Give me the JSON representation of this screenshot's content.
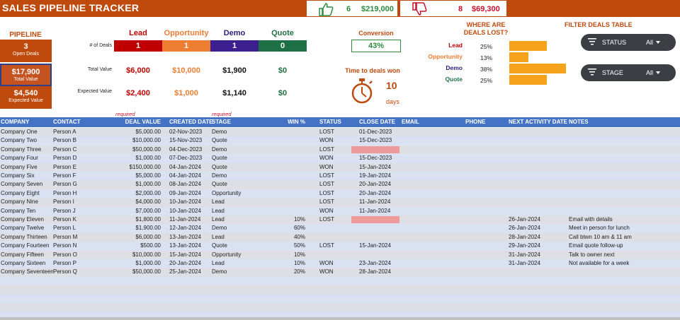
{
  "header": {
    "title": "SALES PIPELINE TRACKER",
    "won_count": "6",
    "won_amount": "$219,000",
    "lost_count": "8",
    "lost_amount": "$69,300"
  },
  "pipeline": {
    "label": "PIPELINE",
    "kpis": [
      {
        "value": "3",
        "label": "Open Deals"
      },
      {
        "value": "$17,900",
        "label": "Total Value"
      },
      {
        "value": "$4,540",
        "label": "Expected Value"
      }
    ],
    "row_labels": [
      "# of Deals",
      "Total Value",
      "Expected Value"
    ]
  },
  "stages": [
    {
      "name": "Lead",
      "deals": "1",
      "total": "$6,000",
      "expected": "$2,400",
      "color": "#c00000"
    },
    {
      "name": "Opportunity",
      "deals": "1",
      "total": "$10,000",
      "expected": "$1,000",
      "color": "#ed7d31"
    },
    {
      "name": "Demo",
      "deals": "1",
      "total": "$1,900",
      "expected": "$1,140",
      "color": "#3b1f8f"
    },
    {
      "name": "Quote",
      "deals": "0",
      "total": "$0",
      "expected": "$0",
      "color": "#1e7145"
    }
  ],
  "conversion": {
    "label": "Conversion",
    "value": "43%"
  },
  "time_to_won": {
    "label": "Time to deals won",
    "value": "10",
    "unit": "days"
  },
  "where_lost": {
    "title_line1": "WHERE ARE",
    "title_line2": "DEALS LOST?",
    "items": [
      {
        "stage": "Lead",
        "pct": "25%",
        "fraction": 0.25,
        "color": "#c00000"
      },
      {
        "stage": "Opportunity",
        "pct": "13%",
        "fraction": 0.13,
        "color": "#ed7d31"
      },
      {
        "stage": "Demo",
        "pct": "38%",
        "fraction": 0.38,
        "color": "#2d1e7a"
      },
      {
        "stage": "Quote",
        "pct": "25%",
        "fraction": 0.25,
        "color": "#1e7145"
      }
    ]
  },
  "filters": {
    "title": "FILTER DEALS TABLE",
    "items": [
      {
        "label": "STATUS",
        "value": "All"
      },
      {
        "label": "STAGE",
        "value": "All"
      }
    ]
  },
  "table": {
    "required_label": "required",
    "columns": [
      "COMPANY",
      "CONTACT",
      "DEAL VALUE",
      "CREATED DATE",
      "STAGE",
      "WIN %",
      "STATUS",
      "CLOSE DATE",
      "EMAIL",
      "PHONE",
      "NEXT ACTIVITY DATE",
      "NOTES"
    ],
    "rows": [
      [
        "Company One",
        "Person A",
        "$5,000.00",
        "02-Nov-2023",
        "Demo",
        "",
        "LOST",
        "01-Dec-2023",
        "",
        "",
        "",
        ""
      ],
      [
        "Company Two",
        "Person B",
        "$10,000.00",
        "15-Nov-2023",
        "Quote",
        "",
        "WON",
        "15-Dec-2023",
        "",
        "",
        "",
        ""
      ],
      [
        "Company Three",
        "Person C",
        "$50,000.00",
        "04-Dec-2023",
        "Demo",
        "",
        "LOST",
        "",
        "",
        "",
        "",
        ""
      ],
      [
        "Company Four",
        "Person D",
        "$1,000.00",
        "07-Dec-2023",
        "Quote",
        "",
        "WON",
        "15-Dec-2023",
        "",
        "",
        "",
        ""
      ],
      [
        "Company Five",
        "Person E",
        "$150,000.00",
        "04-Jan-2024",
        "Quote",
        "",
        "WON",
        "15-Jan-2024",
        "",
        "",
        "",
        ""
      ],
      [
        "Company Six",
        "Person F",
        "$5,000.00",
        "04-Jan-2024",
        "Demo",
        "",
        "LOST",
        "19-Jan-2024",
        "",
        "",
        "",
        ""
      ],
      [
        "Company Seven",
        "Person G",
        "$1,000.00",
        "08-Jan-2024",
        "Quote",
        "",
        "LOST",
        "20-Jan-2024",
        "",
        "",
        "",
        ""
      ],
      [
        "Company Eight",
        "Person H",
        "$2,000.00",
        "09-Jan-2024",
        "Opportunity",
        "",
        "LOST",
        "20-Jan-2024",
        "",
        "",
        "",
        ""
      ],
      [
        "Company Nine",
        "Person I",
        "$4,000.00",
        "10-Jan-2024",
        "Lead",
        "",
        "LOST",
        "11-Jan-2024",
        "",
        "",
        "",
        ""
      ],
      [
        "Company Ten",
        "Person J",
        "$7,000.00",
        "10-Jan-2024",
        "Lead",
        "",
        "WON",
        "11-Jan-2024",
        "",
        "",
        "",
        ""
      ],
      [
        "Company Eleven",
        "Person K",
        "$1,800.00",
        "11-Jan-2024",
        "Lead",
        "10%",
        "LOST",
        "",
        "",
        "",
        "26-Jan-2024",
        "Email with details"
      ],
      [
        "Company Twelve",
        "Person L",
        "$1,900.00",
        "12-Jan-2024",
        "Demo",
        "60%",
        "",
        "",
        "",
        "",
        "26-Jan-2024",
        "Meet in person for lunch"
      ],
      [
        "Company Thirteen",
        "Person M",
        "$6,000.00",
        "13-Jan-2024",
        "Lead",
        "40%",
        "",
        "",
        "",
        "",
        "28-Jan-2024",
        "Call btwn 10 am & 11 am"
      ],
      [
        "Company Fourteen",
        "Person N",
        "$500.00",
        "13-Jan-2024",
        "Quote",
        "50%",
        "LOST",
        "15-Jan-2024",
        "",
        "",
        "29-Jan-2024",
        "Email quote follow-up"
      ],
      [
        "Company Fifteen",
        "Person O",
        "$10,000.00",
        "15-Jan-2024",
        "Opportunity",
        "10%",
        "",
        "",
        "",
        "",
        "31-Jan-2024",
        "Talk to owner next"
      ],
      [
        "Company Sixteen",
        "Person P",
        "$1,000.00",
        "20-Jan-2024",
        "Lead",
        "10%",
        "WON",
        "23-Jan-2024",
        "",
        "",
        "31-Jan-2024",
        "Not available for a week"
      ],
      [
        "Company Seventeen",
        "Person Q",
        "$50,000.00",
        "25-Jan-2024",
        "Demo",
        "20%",
        "WON",
        "28-Jan-2024",
        "",
        "",
        "",
        ""
      ]
    ],
    "missing_close_rows": [
      2,
      10
    ]
  }
}
